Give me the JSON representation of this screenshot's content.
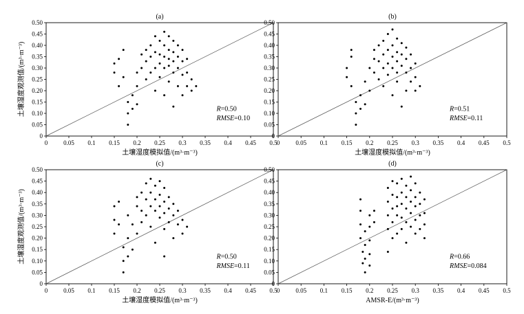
{
  "chart_data": [
    {
      "type": "scatter",
      "title": "(a)",
      "xlabel": "土壤湿度模拟值/(m³·m⁻³)",
      "ylabel": "土壤湿度观测值/(m³·m⁻³)",
      "xlim": [
        0,
        0.5
      ],
      "ylim": [
        0,
        0.5
      ],
      "xticks": [
        "0",
        "0.05",
        "0.1",
        "0.15",
        "0.2",
        "0.25",
        "0.3",
        "0.35",
        "0.4",
        "0.45",
        "0.5"
      ],
      "yticks": [
        "0",
        "0.05",
        "0.10",
        "0.15",
        "0.20",
        "0.25",
        "0.30",
        "0.35",
        "0.40",
        "0.45",
        "0.50"
      ],
      "reference_line": "1:1",
      "stats": {
        "R": "0.50",
        "RMSE": "0.10"
      },
      "points": [
        [
          0.15,
          0.32
        ],
        [
          0.15,
          0.28
        ],
        [
          0.16,
          0.22
        ],
        [
          0.16,
          0.34
        ],
        [
          0.17,
          0.38
        ],
        [
          0.17,
          0.26
        ],
        [
          0.18,
          0.05
        ],
        [
          0.18,
          0.1
        ],
        [
          0.18,
          0.15
        ],
        [
          0.19,
          0.12
        ],
        [
          0.19,
          0.18
        ],
        [
          0.2,
          0.14
        ],
        [
          0.2,
          0.22
        ],
        [
          0.2,
          0.28
        ],
        [
          0.21,
          0.3
        ],
        [
          0.21,
          0.36
        ],
        [
          0.22,
          0.38
        ],
        [
          0.22,
          0.33
        ],
        [
          0.22,
          0.25
        ],
        [
          0.23,
          0.4
        ],
        [
          0.23,
          0.35
        ],
        [
          0.23,
          0.28
        ],
        [
          0.24,
          0.44
        ],
        [
          0.24,
          0.37
        ],
        [
          0.24,
          0.3
        ],
        [
          0.24,
          0.2
        ],
        [
          0.25,
          0.42
        ],
        [
          0.25,
          0.36
        ],
        [
          0.25,
          0.32
        ],
        [
          0.25,
          0.26
        ],
        [
          0.26,
          0.46
        ],
        [
          0.26,
          0.4
        ],
        [
          0.26,
          0.35
        ],
        [
          0.26,
          0.3
        ],
        [
          0.26,
          0.18
        ],
        [
          0.27,
          0.44
        ],
        [
          0.27,
          0.38
        ],
        [
          0.27,
          0.34
        ],
        [
          0.27,
          0.31
        ],
        [
          0.27,
          0.24
        ],
        [
          0.28,
          0.42
        ],
        [
          0.28,
          0.37
        ],
        [
          0.28,
          0.33
        ],
        [
          0.28,
          0.28
        ],
        [
          0.28,
          0.13
        ],
        [
          0.29,
          0.4
        ],
        [
          0.29,
          0.35
        ],
        [
          0.29,
          0.3
        ],
        [
          0.29,
          0.22
        ],
        [
          0.3,
          0.38
        ],
        [
          0.3,
          0.33
        ],
        [
          0.3,
          0.27
        ],
        [
          0.3,
          0.18
        ],
        [
          0.31,
          0.34
        ],
        [
          0.31,
          0.28
        ],
        [
          0.31,
          0.22
        ],
        [
          0.32,
          0.25
        ],
        [
          0.32,
          0.2
        ],
        [
          0.33,
          0.22
        ]
      ]
    },
    {
      "type": "scatter",
      "title": "(b)",
      "xlabel": "土壤湿度模拟值/(m³·m⁻³)",
      "ylabel": "",
      "xlim": [
        0,
        0.5
      ],
      "ylim": [
        0,
        0.5
      ],
      "xticks": [
        "0",
        "0.05",
        "0.1",
        "0.15",
        "0.2",
        "0.25",
        "0.3",
        "0.35",
        "0.4",
        "0.45",
        "0.5"
      ],
      "yticks": [
        "0",
        "0.05",
        "0.10",
        "0.15",
        "0.20",
        "0.25",
        "0.30",
        "0.35",
        "0.40",
        "0.45",
        "0.50"
      ],
      "reference_line": "1:1",
      "stats": {
        "R": "0.51",
        "RMSE": "0.11"
      },
      "points": [
        [
          0.15,
          0.3
        ],
        [
          0.15,
          0.26
        ],
        [
          0.16,
          0.22
        ],
        [
          0.16,
          0.35
        ],
        [
          0.16,
          0.38
        ],
        [
          0.17,
          0.05
        ],
        [
          0.17,
          0.1
        ],
        [
          0.17,
          0.15
        ],
        [
          0.18,
          0.12
        ],
        [
          0.18,
          0.18
        ],
        [
          0.19,
          0.14
        ],
        [
          0.19,
          0.24
        ],
        [
          0.2,
          0.3
        ],
        [
          0.2,
          0.2
        ],
        [
          0.21,
          0.34
        ],
        [
          0.21,
          0.38
        ],
        [
          0.21,
          0.28
        ],
        [
          0.22,
          0.4
        ],
        [
          0.22,
          0.33
        ],
        [
          0.22,
          0.25
        ],
        [
          0.23,
          0.42
        ],
        [
          0.23,
          0.36
        ],
        [
          0.23,
          0.3
        ],
        [
          0.23,
          0.22
        ],
        [
          0.24,
          0.45
        ],
        [
          0.24,
          0.38
        ],
        [
          0.24,
          0.32
        ],
        [
          0.24,
          0.27
        ],
        [
          0.25,
          0.47
        ],
        [
          0.25,
          0.4
        ],
        [
          0.25,
          0.35
        ],
        [
          0.25,
          0.3
        ],
        [
          0.25,
          0.18
        ],
        [
          0.26,
          0.43
        ],
        [
          0.26,
          0.37
        ],
        [
          0.26,
          0.33
        ],
        [
          0.26,
          0.28
        ],
        [
          0.26,
          0.24
        ],
        [
          0.27,
          0.41
        ],
        [
          0.27,
          0.36
        ],
        [
          0.27,
          0.31
        ],
        [
          0.27,
          0.13
        ],
        [
          0.28,
          0.39
        ],
        [
          0.28,
          0.34
        ],
        [
          0.28,
          0.28
        ],
        [
          0.28,
          0.2
        ],
        [
          0.29,
          0.36
        ],
        [
          0.29,
          0.3
        ],
        [
          0.29,
          0.24
        ],
        [
          0.3,
          0.32
        ],
        [
          0.3,
          0.26
        ],
        [
          0.3,
          0.2
        ],
        [
          0.31,
          0.22
        ]
      ]
    },
    {
      "type": "scatter",
      "title": "(c)",
      "xlabel": "土壤湿度模拟值/(m³·m⁻³)",
      "ylabel": "土壤湿度观测值/(m³·m⁻³)",
      "xlim": [
        0,
        0.5
      ],
      "ylim": [
        0,
        0.5
      ],
      "xticks": [
        "0",
        "0.05",
        "0.1",
        "0.15",
        "0.2",
        "0.25",
        "0.3",
        "0.35",
        "0.4",
        "0.45",
        "0.5"
      ],
      "yticks": [
        "0",
        "0.05",
        "0.10",
        "0.15",
        "0.20",
        "0.25",
        "0.30",
        "0.35",
        "0.40",
        "0.45",
        "0.50"
      ],
      "reference_line": "1:1",
      "stats": {
        "R": "0.50",
        "RMSE": "0.11"
      },
      "points": [
        [
          0.15,
          0.34
        ],
        [
          0.15,
          0.28
        ],
        [
          0.15,
          0.22
        ],
        [
          0.16,
          0.26
        ],
        [
          0.16,
          0.36
        ],
        [
          0.17,
          0.05
        ],
        [
          0.17,
          0.1
        ],
        [
          0.17,
          0.16
        ],
        [
          0.18,
          0.12
        ],
        [
          0.18,
          0.2
        ],
        [
          0.18,
          0.3
        ],
        [
          0.19,
          0.15
        ],
        [
          0.19,
          0.26
        ],
        [
          0.2,
          0.34
        ],
        [
          0.2,
          0.38
        ],
        [
          0.2,
          0.22
        ],
        [
          0.21,
          0.4
        ],
        [
          0.21,
          0.32
        ],
        [
          0.21,
          0.27
        ],
        [
          0.22,
          0.44
        ],
        [
          0.22,
          0.37
        ],
        [
          0.22,
          0.3
        ],
        [
          0.23,
          0.46
        ],
        [
          0.23,
          0.4
        ],
        [
          0.23,
          0.34
        ],
        [
          0.23,
          0.25
        ],
        [
          0.24,
          0.43
        ],
        [
          0.24,
          0.37
        ],
        [
          0.24,
          0.32
        ],
        [
          0.24,
          0.18
        ],
        [
          0.25,
          0.45
        ],
        [
          0.25,
          0.39
        ],
        [
          0.25,
          0.34
        ],
        [
          0.25,
          0.29
        ],
        [
          0.26,
          0.42
        ],
        [
          0.26,
          0.36
        ],
        [
          0.26,
          0.31
        ],
        [
          0.26,
          0.24
        ],
        [
          0.26,
          0.12
        ],
        [
          0.27,
          0.38
        ],
        [
          0.27,
          0.33
        ],
        [
          0.27,
          0.27
        ],
        [
          0.28,
          0.35
        ],
        [
          0.28,
          0.3
        ],
        [
          0.28,
          0.2
        ],
        [
          0.29,
          0.32
        ],
        [
          0.29,
          0.26
        ],
        [
          0.3,
          0.28
        ],
        [
          0.3,
          0.22
        ],
        [
          0.31,
          0.25
        ]
      ]
    },
    {
      "type": "scatter",
      "title": "(d)",
      "xlabel": "AMSR-E/(m³·m⁻³)",
      "ylabel": "",
      "xlim": [
        0,
        0.5
      ],
      "ylim": [
        0,
        0.5
      ],
      "xticks": [
        "0",
        "0.05",
        "0.1",
        "0.15",
        "0.2",
        "0.25",
        "0.3",
        "0.35",
        "0.4",
        "0.45",
        "0.5"
      ],
      "yticks": [
        "0",
        "0.05",
        "0.10",
        "0.15",
        "0.20",
        "0.25",
        "0.30",
        "0.35",
        "0.40",
        "0.45",
        "0.50"
      ],
      "reference_line": "1:1",
      "stats": {
        "R": "0.66",
        "RMSE": "0.084"
      },
      "points": [
        [
          0.18,
          0.37
        ],
        [
          0.18,
          0.32
        ],
        [
          0.18,
          0.26
        ],
        [
          0.18,
          0.2
        ],
        [
          0.185,
          0.14
        ],
        [
          0.185,
          0.09
        ],
        [
          0.19,
          0.05
        ],
        [
          0.19,
          0.11
        ],
        [
          0.19,
          0.17
        ],
        [
          0.19,
          0.23
        ],
        [
          0.2,
          0.3
        ],
        [
          0.2,
          0.25
        ],
        [
          0.2,
          0.19
        ],
        [
          0.2,
          0.13
        ],
        [
          0.2,
          0.08
        ],
        [
          0.21,
          0.32
        ],
        [
          0.21,
          0.27
        ],
        [
          0.24,
          0.42
        ],
        [
          0.24,
          0.36
        ],
        [
          0.24,
          0.3
        ],
        [
          0.24,
          0.24
        ],
        [
          0.24,
          0.14
        ],
        [
          0.25,
          0.45
        ],
        [
          0.25,
          0.39
        ],
        [
          0.25,
          0.33
        ],
        [
          0.25,
          0.27
        ],
        [
          0.25,
          0.2
        ],
        [
          0.26,
          0.44
        ],
        [
          0.26,
          0.38
        ],
        [
          0.26,
          0.34
        ],
        [
          0.26,
          0.3
        ],
        [
          0.26,
          0.22
        ],
        [
          0.27,
          0.46
        ],
        [
          0.27,
          0.4
        ],
        [
          0.27,
          0.35
        ],
        [
          0.27,
          0.29
        ],
        [
          0.27,
          0.24
        ],
        [
          0.28,
          0.43
        ],
        [
          0.28,
          0.38
        ],
        [
          0.28,
          0.33
        ],
        [
          0.28,
          0.27
        ],
        [
          0.28,
          0.18
        ],
        [
          0.29,
          0.47
        ],
        [
          0.29,
          0.41
        ],
        [
          0.29,
          0.36
        ],
        [
          0.29,
          0.31
        ],
        [
          0.29,
          0.25
        ],
        [
          0.3,
          0.44
        ],
        [
          0.3,
          0.38
        ],
        [
          0.3,
          0.34
        ],
        [
          0.3,
          0.28
        ],
        [
          0.3,
          0.22
        ],
        [
          0.31,
          0.4
        ],
        [
          0.31,
          0.35
        ],
        [
          0.31,
          0.3
        ],
        [
          0.31,
          0.24
        ],
        [
          0.32,
          0.37
        ],
        [
          0.32,
          0.31
        ],
        [
          0.32,
          0.26
        ],
        [
          0.32,
          0.2
        ]
      ]
    }
  ]
}
